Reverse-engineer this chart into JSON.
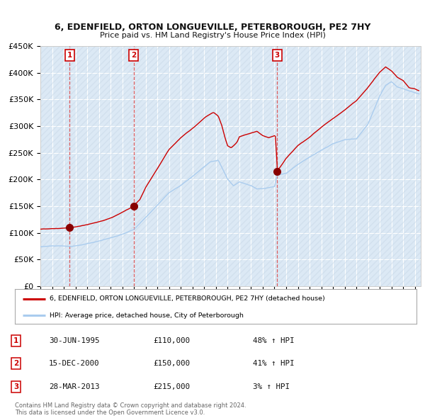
{
  "title1": "6, EDENFIELD, ORTON LONGUEVILLE, PETERBOROUGH, PE2 7HY",
  "title2": "Price paid vs. HM Land Registry's House Price Index (HPI)",
  "ylabel_vals": [
    0,
    50000,
    100000,
    150000,
    200000,
    250000,
    300000,
    350000,
    400000,
    450000
  ],
  "ylabel_labels": [
    "£0",
    "£50K",
    "£100K",
    "£150K",
    "£200K",
    "£250K",
    "£300K",
    "£350K",
    "£400K",
    "£450K"
  ],
  "xmin": 1993.0,
  "xmax": 2025.5,
  "ymin": 0,
  "ymax": 450000,
  "bg_color": "#dce9f5",
  "grid_color": "#ffffff",
  "line_color_red": "#cc0000",
  "line_color_blue": "#aaccee",
  "purchase_dates": [
    1995.5,
    2000.96,
    2013.24
  ],
  "purchase_prices": [
    110000,
    150000,
    215000
  ],
  "purchase_labels": [
    "1",
    "2",
    "3"
  ],
  "vline_color": "#dd4444",
  "dot_color": "#880000",
  "legend_label_red": "6, EDENFIELD, ORTON LONGUEVILLE, PETERBOROUGH, PE2 7HY (detached house)",
  "legend_label_blue": "HPI: Average price, detached house, City of Peterborough",
  "table_rows": [
    [
      "1",
      "30-JUN-1995",
      "£110,000",
      "48% ↑ HPI"
    ],
    [
      "2",
      "15-DEC-2000",
      "£150,000",
      "41% ↑ HPI"
    ],
    [
      "3",
      "28-MAR-2013",
      "£215,000",
      "3% ↑ HPI"
    ]
  ],
  "footer": "Contains HM Land Registry data © Crown copyright and database right 2024.\nThis data is licensed under the Open Government Licence v3.0."
}
